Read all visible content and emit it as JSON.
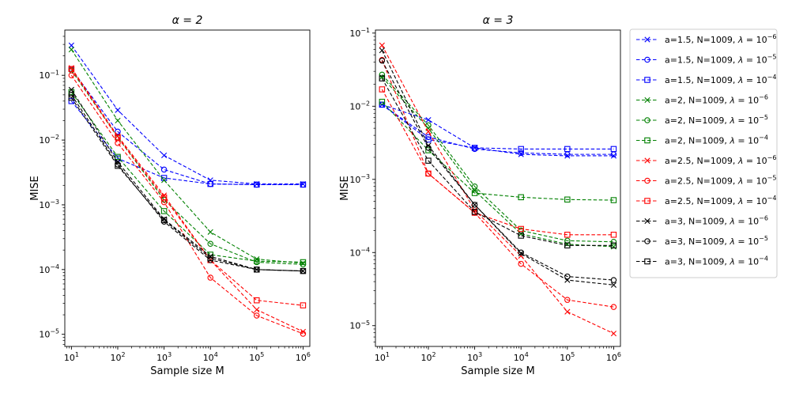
{
  "chart_data": [
    {
      "type": "line",
      "title": "α = 2",
      "xlabel": "Sample size M",
      "ylabel": "MISE",
      "xscale": "log",
      "yscale": "log",
      "x": [
        10,
        100,
        1000,
        10000,
        100000,
        1000000
      ],
      "x_tick_labels": [
        {
          "base": "10",
          "exp": "1"
        },
        {
          "base": "10",
          "exp": "2"
        },
        {
          "base": "10",
          "exp": "3"
        },
        {
          "base": "10",
          "exp": "4"
        },
        {
          "base": "10",
          "exp": "5"
        },
        {
          "base": "10",
          "exp": "6"
        }
      ],
      "y_tick_labels": [
        {
          "value": 1e-05,
          "base": "10",
          "exp": "−5"
        },
        {
          "value": 0.0001,
          "base": "10",
          "exp": "−4"
        },
        {
          "value": 0.001,
          "base": "10",
          "exp": "−3"
        },
        {
          "value": 0.01,
          "base": "10",
          "exp": "−2"
        },
        {
          "value": 0.1,
          "base": "10",
          "exp": "−1"
        }
      ],
      "xlim": [
        7.2,
        1400000
      ],
      "ylim": [
        6.5e-06,
        0.5
      ],
      "series": [
        {
          "name": "a=1.5, N=1009, λ=10^-6",
          "color": "#0000ff",
          "marker": "x",
          "values": [
            0.29,
            0.029,
            0.0058,
            0.0024,
            0.0021,
            0.0021
          ]
        },
        {
          "name": "a=1.5, N=1009, λ=10^-5",
          "color": "#0000ff",
          "marker": "o",
          "values": [
            0.125,
            0.0135,
            0.0035,
            0.0021,
            0.00205,
            0.00205
          ]
        },
        {
          "name": "a=1.5, N=1009, λ=10^-4",
          "color": "#0000ff",
          "marker": "s",
          "values": [
            0.04,
            0.0052,
            0.0026,
            0.0021,
            0.00205,
            0.00205
          ]
        },
        {
          "name": "a=2, N=1009, λ=10^-6",
          "color": "#008000",
          "marker": "x",
          "values": [
            0.25,
            0.02,
            0.0024,
            0.00038,
            0.000145,
            0.000125
          ]
        },
        {
          "name": "a=2, N=1009, λ=10^-5",
          "color": "#008000",
          "marker": "o",
          "values": [
            0.12,
            0.011,
            0.0012,
            0.00025,
            0.00013,
            0.00012
          ]
        },
        {
          "name": "a=2, N=1009, λ=10^-4",
          "color": "#008000",
          "marker": "s",
          "values": [
            0.055,
            0.0055,
            0.0008,
            0.00017,
            0.000135,
            0.00013
          ]
        },
        {
          "name": "a=2.5, N=1009, λ=10^-6",
          "color": "#ff0000",
          "marker": "x",
          "values": [
            0.13,
            0.0115,
            0.0014,
            0.00014,
            2.4e-05,
            1.1e-05
          ]
        },
        {
          "name": "a=2.5, N=1009, λ=10^-5",
          "color": "#ff0000",
          "marker": "o",
          "values": [
            0.1,
            0.009,
            0.0011,
            7.5e-05,
            1.95e-05,
            1.02e-05
          ]
        },
        {
          "name": "a=2.5, N=1009, λ=10^-4",
          "color": "#ff0000",
          "marker": "s",
          "values": [
            0.125,
            0.011,
            0.0013,
            0.00014,
            3.35e-05,
            2.8e-05
          ]
        },
        {
          "name": "a=3, N=1009, λ=10^-6",
          "color": "#000000",
          "marker": "x",
          "values": [
            0.06,
            0.0046,
            0.0006,
            0.00016,
            0.0001,
            9.5e-05
          ]
        },
        {
          "name": "a=3, N=1009, λ=10^-5",
          "color": "#000000",
          "marker": "o",
          "values": [
            0.05,
            0.0042,
            0.00055,
            0.00014,
            0.0001,
            9.5e-05
          ]
        },
        {
          "name": "a=3, N=1009, λ=10^-4",
          "color": "#000000",
          "marker": "s",
          "values": [
            0.045,
            0.004,
            0.00058,
            0.00015,
            0.0001,
            9.5e-05
          ]
        }
      ]
    },
    {
      "type": "line",
      "title": "α = 3",
      "xlabel": "Sample size M",
      "ylabel": "MISE",
      "xscale": "log",
      "yscale": "log",
      "x": [
        10,
        100,
        1000,
        10000,
        100000,
        1000000
      ],
      "x_tick_labels": [
        {
          "base": "10",
          "exp": "1"
        },
        {
          "base": "10",
          "exp": "2"
        },
        {
          "base": "10",
          "exp": "3"
        },
        {
          "base": "10",
          "exp": "4"
        },
        {
          "base": "10",
          "exp": "5"
        },
        {
          "base": "10",
          "exp": "6"
        }
      ],
      "y_tick_labels": [
        {
          "value": 1e-05,
          "base": "10",
          "exp": "−5"
        },
        {
          "value": 0.0001,
          "base": "10",
          "exp": "−4"
        },
        {
          "value": 0.001,
          "base": "10",
          "exp": "−3"
        },
        {
          "value": 0.01,
          "base": "10",
          "exp": "−2"
        },
        {
          "value": 0.1,
          "base": "10",
          "exp": "−1"
        }
      ],
      "xlim": [
        7.2,
        1400000
      ],
      "ylim": [
        5.2e-06,
        0.11
      ],
      "series": [
        {
          "name": "a=1.5, N=1009, λ=10^-6",
          "color": "#0000ff",
          "marker": "x",
          "values": [
            0.0105,
            0.0065,
            0.0027,
            0.0022,
            0.0021,
            0.0021
          ]
        },
        {
          "name": "a=1.5, N=1009, λ=10^-5",
          "color": "#0000ff",
          "marker": "o",
          "values": [
            0.0105,
            0.0038,
            0.0026,
            0.0023,
            0.0022,
            0.0022
          ]
        },
        {
          "name": "a=1.5, N=1009, λ=10^-4",
          "color": "#0000ff",
          "marker": "s",
          "values": [
            0.0105,
            0.0035,
            0.0027,
            0.0026,
            0.0026,
            0.0026
          ]
        },
        {
          "name": "a=2, N=1009, λ=10^-6",
          "color": "#008000",
          "marker": "x",
          "values": [
            0.025,
            0.005,
            0.0007,
            0.00018,
            0.00013,
            0.00012
          ]
        },
        {
          "name": "a=2, N=1009, λ=10^-5",
          "color": "#008000",
          "marker": "o",
          "values": [
            0.027,
            0.0055,
            0.0008,
            0.0002,
            0.000145,
            0.00014
          ]
        },
        {
          "name": "a=2, N=1009, λ=10^-4",
          "color": "#008000",
          "marker": "s",
          "values": [
            0.0115,
            0.0025,
            0.00065,
            0.00057,
            0.00053,
            0.00052
          ]
        },
        {
          "name": "a=2.5, N=1009, λ=10^-6",
          "color": "#ff0000",
          "marker": "x",
          "values": [
            0.068,
            0.0045,
            0.00038,
            9e-05,
            1.55e-05,
            7.8e-06
          ]
        },
        {
          "name": "a=2.5, N=1009, λ=10^-5",
          "color": "#ff0000",
          "marker": "o",
          "values": [
            0.043,
            0.0012,
            0.00035,
            7e-05,
            2.25e-05,
            1.8e-05
          ]
        },
        {
          "name": "a=2.5, N=1009, λ=10^-4",
          "color": "#ff0000",
          "marker": "s",
          "values": [
            0.017,
            0.0012,
            0.00035,
            0.00021,
            0.000175,
            0.000175
          ]
        },
        {
          "name": "a=3, N=1009, λ=10^-6",
          "color": "#000000",
          "marker": "x",
          "values": [
            0.058,
            0.0029,
            0.00045,
            9.7e-05,
            4.2e-05,
            3.6e-05
          ]
        },
        {
          "name": "a=3, N=1009, λ=10^-5",
          "color": "#000000",
          "marker": "o",
          "values": [
            0.042,
            0.0027,
            0.00045,
            0.0001,
            4.7e-05,
            4.2e-05
          ]
        },
        {
          "name": "a=3, N=1009, λ=10^-4",
          "color": "#000000",
          "marker": "s",
          "values": [
            0.024,
            0.0018,
            0.00036,
            0.00017,
            0.000125,
            0.000125
          ]
        }
      ]
    }
  ],
  "legend": {
    "placement": "right",
    "items": [
      {
        "label": "a=1.5, N=1009, ",
        "exp": "−6",
        "color": "#0000ff",
        "marker": "x"
      },
      {
        "label": "a=1.5, N=1009, ",
        "exp": "−5",
        "color": "#0000ff",
        "marker": "o"
      },
      {
        "label": "a=1.5, N=1009, ",
        "exp": "−4",
        "color": "#0000ff",
        "marker": "s"
      },
      {
        "label": "a=2, N=1009, ",
        "exp": "−6",
        "color": "#008000",
        "marker": "x"
      },
      {
        "label": "a=2, N=1009, ",
        "exp": "−5",
        "color": "#008000",
        "marker": "o"
      },
      {
        "label": "a=2, N=1009, ",
        "exp": "−4",
        "color": "#008000",
        "marker": "s"
      },
      {
        "label": "a=2.5, N=1009, ",
        "exp": "−6",
        "color": "#ff0000",
        "marker": "x"
      },
      {
        "label": "a=2.5, N=1009, ",
        "exp": "−5",
        "color": "#ff0000",
        "marker": "o"
      },
      {
        "label": "a=2.5, N=1009, ",
        "exp": "−4",
        "color": "#ff0000",
        "marker": "s"
      },
      {
        "label": "a=3, N=1009, ",
        "exp": "−6",
        "color": "#000000",
        "marker": "x"
      },
      {
        "label": "a=3, N=1009, ",
        "exp": "−5",
        "color": "#000000",
        "marker": "o"
      },
      {
        "label": "a=3, N=1009, ",
        "exp": "−4",
        "color": "#000000",
        "marker": "s"
      }
    ],
    "lambda_symbol": "λ",
    "equals": " = 10"
  }
}
